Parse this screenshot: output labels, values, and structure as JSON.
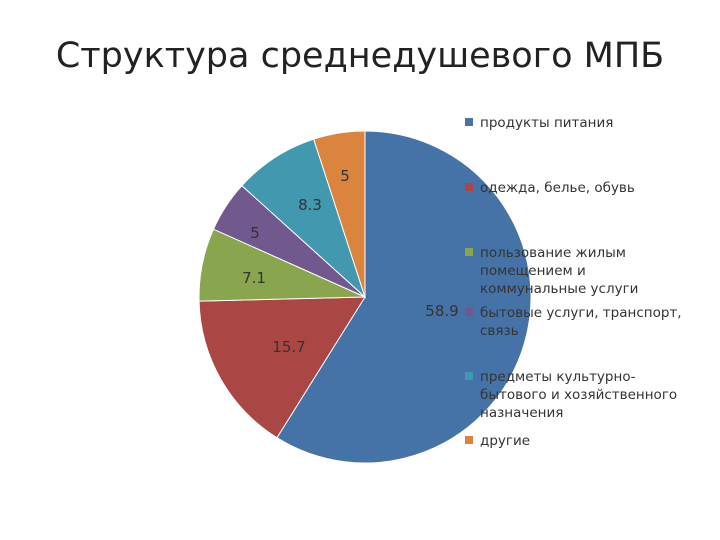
{
  "title": "Структура среднедушевого МПБ",
  "chart_data": {
    "type": "pie",
    "title": "Структура среднедушевого МПБ",
    "legend_position": "right",
    "slices": [
      {
        "label": "продукты питания",
        "value": 58.9,
        "display": "58.9",
        "color": "#4572A7"
      },
      {
        "label": "одежда, белье, обувь",
        "value": 15.7,
        "display": "15.7",
        "color": "#AA4643"
      },
      {
        "label": "пользование жилым помещением и коммунальные услуги",
        "value": 7.1,
        "display": "7.1",
        "color": "#89A54E"
      },
      {
        "label": "бытовые услуги, транспорт, связь",
        "value": 5,
        "display": "5",
        "color": "#71588F"
      },
      {
        "label": "предметы культурно-бытового и хозяйственного назначения",
        "value": 8.3,
        "display": "8.3",
        "color": "#4198AF"
      },
      {
        "label": "другие",
        "value": 5,
        "display": "5",
        "color": "#DB843D"
      }
    ],
    "legend_lines": [
      [
        "продукты питания"
      ],
      [
        "одежда, белье, обувь"
      ],
      [
        "пользование жилым",
        "помещением и",
        "коммунальные услуги"
      ],
      [
        "бытовые услуги, транспорт,",
        "связь"
      ],
      [
        "предметы культурно-",
        "бытового и хозяйственного",
        "назначения"
      ],
      [
        "другие"
      ]
    ]
  }
}
